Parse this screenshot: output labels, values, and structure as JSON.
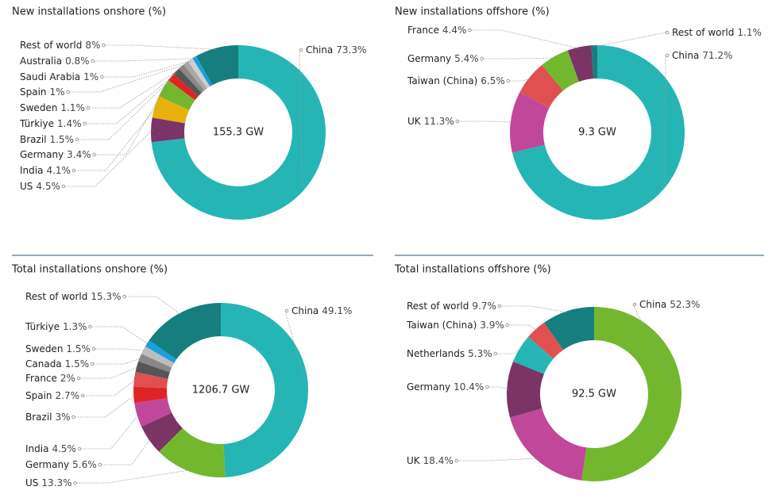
{
  "chart_data": [
    {
      "type": "donut",
      "title": "New installations onshore (%)",
      "center_label": "155.3 GW",
      "categories": [
        "China",
        "US",
        "India",
        "Germany",
        "Brazil",
        "Türkiye",
        "Sweden",
        "Spain",
        "Saudi Arabia",
        "Australia",
        "Rest of world"
      ],
      "values": [
        73.3,
        4.5,
        4.1,
        3.4,
        1.5,
        1.4,
        1.1,
        1,
        1,
        0.8,
        8
      ],
      "value_labels": [
        "73.3%",
        "4.5%",
        "4.1%",
        "3.4%",
        "1.5%",
        "1.4%",
        "1.1%",
        "1%",
        "1%",
        "0.8%",
        "8%"
      ],
      "colors": [
        "#26b5b5",
        "#7a3466",
        "#e8b10c",
        "#73b72f",
        "#e02424",
        "#555555",
        "#888888",
        "#a8a8a8",
        "#cfcfcf",
        "#1aa0e0",
        "#167e7e"
      ]
    },
    {
      "type": "donut",
      "title": "New installations offshore (%)",
      "center_label": "9.3 GW",
      "categories": [
        "China",
        "UK",
        "Taiwan (China)",
        "Germany",
        "France",
        "Rest of world"
      ],
      "values": [
        71.2,
        11.3,
        6.5,
        5.4,
        4.4,
        1.1
      ],
      "value_labels": [
        "71.2%",
        "11.3%",
        "6.5%",
        "5.4%",
        "4.4%",
        "1.1%"
      ],
      "colors": [
        "#26b5b5",
        "#c0479a",
        "#e05050",
        "#73b72f",
        "#7a3466",
        "#167e7e"
      ]
    },
    {
      "type": "donut",
      "title": "Total installations onshore (%)",
      "center_label": "1206.7 GW",
      "categories": [
        "China",
        "US",
        "Germany",
        "India",
        "Brazil",
        "Spain",
        "France",
        "Canada",
        "Sweden",
        "Türkiye",
        "Rest of world"
      ],
      "values": [
        49.1,
        13.3,
        5.6,
        4.5,
        3,
        2.7,
        2,
        1.5,
        1.5,
        1.3,
        15.3
      ],
      "value_labels": [
        "49.1%",
        "13.3%",
        "5.6%",
        "4.5%",
        "3%",
        "2.7%",
        "2%",
        "1.5%",
        "1.5%",
        "1.3%",
        "15.3%"
      ],
      "colors": [
        "#26b5b5",
        "#73b72f",
        "#7a3466",
        "#c0479a",
        "#e02424",
        "#e05050",
        "#555555",
        "#888888",
        "#bdbdbd",
        "#1aa0e0",
        "#167e7e"
      ]
    },
    {
      "type": "donut",
      "title": "Total installations offshore (%)",
      "center_label": "92.5 GW",
      "categories": [
        "China",
        "UK",
        "Germany",
        "Netherlands",
        "Taiwan (China)",
        "Rest of world"
      ],
      "values": [
        52.3,
        18.4,
        10.4,
        5.3,
        3.9,
        9.7
      ],
      "value_labels": [
        "52.3%",
        "18.4%",
        "10.4%",
        "5.3%",
        "3.9%",
        "9.7%"
      ],
      "colors": [
        "#73b72f",
        "#c0479a",
        "#7a3466",
        "#26b5b5",
        "#e05050",
        "#167e7e"
      ]
    }
  ]
}
